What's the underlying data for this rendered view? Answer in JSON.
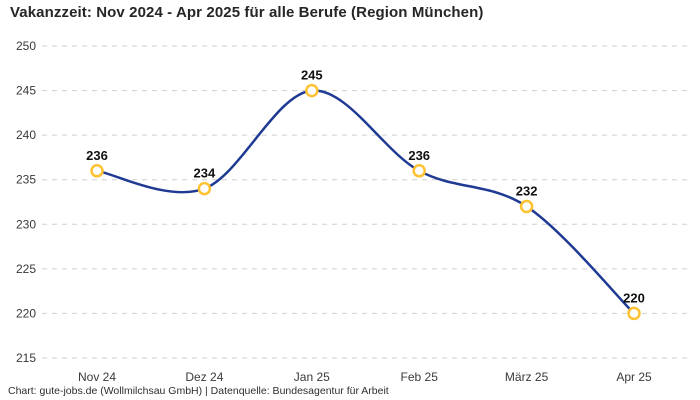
{
  "page": {
    "title": "Vakanzzeit: Nov 2024 - Apr 2025 für alle Berufe (Region München)",
    "footer": "Chart: gute-jobs.de (Wollmilchsau GmbH) | Datenquelle: Bundesagentur für Arbeit"
  },
  "chart_data": {
    "type": "line",
    "title": "Vakanzzeit: Nov 2024 - Apr 2025 für alle Berufe (Region München)",
    "categories": [
      "Nov 24",
      "Dez 24",
      "Jan 25",
      "Feb 25",
      "März 25",
      "Apr 25"
    ],
    "series": [
      {
        "name": "Vakanzzeit",
        "values": [
          236,
          234,
          245,
          236,
          232,
          220
        ]
      }
    ],
    "data_labels": [
      236,
      234,
      245,
      236,
      232,
      220
    ],
    "xlabel": "",
    "ylabel": "",
    "ylim": [
      215,
      250
    ],
    "ytick_step": 5,
    "yticks": [
      215,
      220,
      225,
      230,
      235,
      240,
      245,
      250
    ],
    "grid": "horizontal-dashed",
    "legend": "none",
    "curve": "smooth-spline",
    "colors": {
      "line": "#1F3A93",
      "marker_ring": "#FFC233",
      "marker_fill": "#FFFFFF",
      "gridline": "#CFCFCF",
      "text": "#3A3A3A",
      "title": "#262626"
    }
  }
}
